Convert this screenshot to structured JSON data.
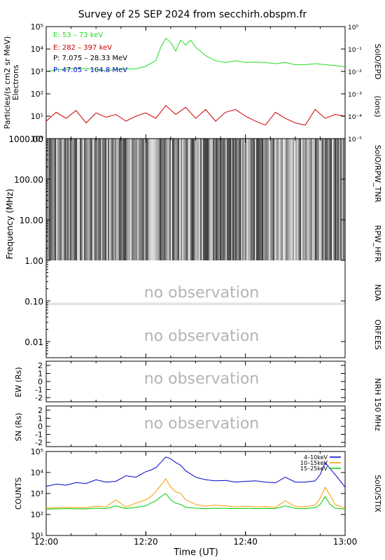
{
  "title": "Survey of 25 SEP 2024 from secchirh.obspm.fr",
  "x_axis": {
    "label": "Time (UT)",
    "ticks": [
      "12:00",
      "12:20",
      "12:40",
      "13:00"
    ]
  },
  "colors": {
    "axis": "#000000",
    "no_observation_text": "#b4b4b4",
    "epd_e1": "#22dd22",
    "epd_e2": "#cc0000",
    "epd_p1": "#000000",
    "epd_p2": "#0000cc",
    "stix_4_10": "#0000cc",
    "stix_10_15": "#ff9900",
    "stix_15_25": "#00cc00"
  },
  "panels": {
    "epd": {
      "ylabel_line1": "Particles/(s cm2 sr MeV)",
      "ylabel_line2": "Electrons",
      "right_ylabel": "(ions)",
      "instrument_label": "SolO/EPD",
      "left_ticks": [
        "10⁰",
        "10¹",
        "10²",
        "10³",
        "10⁴",
        "10⁵"
      ],
      "right_ticks": [
        "10⁻⁵",
        "10⁻⁴",
        "10⁻³",
        "10⁻²",
        "10⁻¹",
        "10⁰"
      ],
      "legend": [
        {
          "text": "E: 53 – 73 keV"
        },
        {
          "text": "E: 282 – 397 keV"
        },
        {
          "text": "P: 7.075 – 28.33 MeV"
        },
        {
          "text": "P: 47.05 – 104.8 MeV"
        }
      ]
    },
    "radio": {
      "ylabel": "Frequency (MHz)",
      "ticks": [
        "0.01",
        "0.10",
        "1.00",
        "10.00",
        "100.00",
        "1000.00"
      ],
      "no_obs_1": "no observation",
      "no_obs_2": "no observation",
      "labels": {
        "tnr": "SolO/RPW_TNR",
        "hfr": "RPW_HFR",
        "nda": "NDA",
        "orfees": "ORFEES"
      }
    },
    "nrh_ew": {
      "ylabel": "EW (Rs)",
      "ticks": [
        "2",
        "1",
        "0",
        "-1",
        "-2"
      ],
      "no_obs": "no observation",
      "label": "NRH 150 MHz"
    },
    "nrh_sn": {
      "ylabel": "SN (Rs)",
      "ticks": [
        "2",
        "1",
        "0",
        "-1",
        "-2"
      ],
      "no_obs": "no observation"
    },
    "stix": {
      "ylabel": "COUNTS",
      "label": "SolO/STIX",
      "ticks": [
        "10¹",
        "10²",
        "10³",
        "10⁴",
        "10⁵"
      ],
      "legend": [
        "4–10keV",
        "10–15keV",
        "15–25keV"
      ]
    }
  },
  "chart_data": [
    {
      "type": "line",
      "panel": "SolO/EPD",
      "ylabel": "Particles/(s cm2 sr MeV) Electrons",
      "y_scale": "log",
      "ylim": [
        1,
        100000
      ],
      "right_ylim": [
        1e-05,
        1
      ],
      "x_unit": "minutes after 12:00 UT",
      "xlim": [
        0,
        60
      ],
      "series": [
        {
          "name": "E: 53 – 73 keV",
          "x": [
            0,
            3,
            6,
            9,
            12,
            15,
            18,
            20,
            22,
            23,
            24,
            25,
            26,
            27,
            28,
            29,
            30,
            31,
            32,
            34,
            36,
            38,
            40,
            42,
            44,
            46,
            48,
            50,
            52,
            54,
            56,
            58,
            60
          ],
          "values": [
            1000,
            1200,
            1400,
            1300,
            1100,
            1300,
            1300,
            1700,
            3000,
            12000,
            30000,
            20000,
            8000,
            25000,
            15000,
            25000,
            12000,
            8000,
            5000,
            3000,
            2500,
            3000,
            2500,
            2600,
            2500,
            2200,
            2500,
            2000,
            2000,
            2200,
            2000,
            1800,
            1600
          ]
        },
        {
          "name": "E: 282 – 397 keV",
          "x": [
            0,
            2,
            4,
            6,
            8,
            10,
            12,
            14,
            16,
            18,
            20,
            22,
            24,
            26,
            28,
            30,
            32,
            34,
            36,
            38,
            40,
            42,
            44,
            46,
            48,
            50,
            52,
            54,
            56,
            58,
            60
          ],
          "values": [
            6,
            15,
            8,
            18,
            5,
            14,
            9,
            12,
            6,
            10,
            14,
            8,
            30,
            12,
            25,
            8,
            20,
            6,
            15,
            20,
            10,
            6,
            4,
            15,
            8,
            5,
            4,
            20,
            8,
            12,
            10
          ]
        }
      ]
    },
    {
      "type": "heatmap",
      "panel": "Radio spectrogram",
      "ylabel": "Frequency (MHz)",
      "y_scale": "log",
      "ylim": [
        0.004,
        1000
      ],
      "segments": [
        {
          "instrument": "SolO/RPW_TNR",
          "freq_range": [
            0.004,
            1.0
          ],
          "status": "observed"
        },
        {
          "instrument": "RPW_HFR",
          "freq_range": [
            1.0,
            16
          ],
          "status": "observed"
        },
        {
          "instrument": "NDA",
          "freq_range": [
            16,
            100
          ],
          "status": "no observation"
        },
        {
          "instrument": "ORFEES",
          "freq_range": [
            100,
            1000
          ],
          "status": "no observation"
        }
      ]
    },
    {
      "type": "line",
      "panel": "SolO/STIX",
      "ylabel": "COUNTS",
      "y_scale": "log",
      "ylim": [
        10,
        100000
      ],
      "x_unit": "minutes after 12:00 UT",
      "xlim": [
        0,
        60
      ],
      "series": [
        {
          "name": "4–10keV",
          "x": [
            0,
            2,
            4,
            6,
            8,
            10,
            12,
            14,
            16,
            18,
            20,
            21,
            22,
            23,
            24,
            25,
            26,
            27,
            28,
            30,
            32,
            34,
            36,
            38,
            40,
            42,
            44,
            46,
            48,
            50,
            52,
            54,
            55,
            56,
            57,
            58,
            59,
            60
          ],
          "values": [
            2200,
            2800,
            2500,
            3300,
            3000,
            4500,
            3500,
            3800,
            7000,
            6000,
            11000,
            13000,
            17000,
            30000,
            55000,
            45000,
            30000,
            22000,
            12000,
            6000,
            4500,
            4000,
            4200,
            3500,
            3800,
            4000,
            3500,
            3200,
            6000,
            3500,
            3500,
            4000,
            8000,
            30000,
            15000,
            8000,
            4000,
            2000
          ]
        },
        {
          "name": "10–15keV",
          "x": [
            0,
            4,
            8,
            10,
            12,
            14,
            16,
            18,
            20,
            21,
            22,
            23,
            24,
            25,
            26,
            27,
            28,
            30,
            32,
            34,
            36,
            38,
            40,
            42,
            44,
            46,
            48,
            50,
            52,
            54,
            55,
            56,
            57,
            58,
            60
          ],
          "values": [
            200,
            220,
            210,
            250,
            230,
            500,
            220,
            350,
            500,
            700,
            1200,
            2500,
            5000,
            2000,
            1200,
            1000,
            500,
            300,
            250,
            280,
            260,
            230,
            250,
            230,
            240,
            220,
            450,
            240,
            230,
            280,
            600,
            2000,
            800,
            300,
            200
          ]
        },
        {
          "name": "15–25keV",
          "x": [
            0,
            4,
            8,
            10,
            12,
            14,
            16,
            18,
            20,
            21,
            22,
            23,
            24,
            25,
            26,
            27,
            28,
            30,
            32,
            34,
            36,
            38,
            40,
            42,
            44,
            46,
            48,
            50,
            52,
            54,
            55,
            56,
            57,
            58,
            60
          ],
          "values": [
            180,
            190,
            185,
            200,
            190,
            260,
            190,
            220,
            260,
            350,
            450,
            700,
            1000,
            500,
            350,
            300,
            220,
            200,
            190,
            200,
            195,
            190,
            195,
            190,
            195,
            190,
            260,
            195,
            190,
            210,
            300,
            700,
            300,
            200,
            180
          ]
        }
      ]
    }
  ]
}
